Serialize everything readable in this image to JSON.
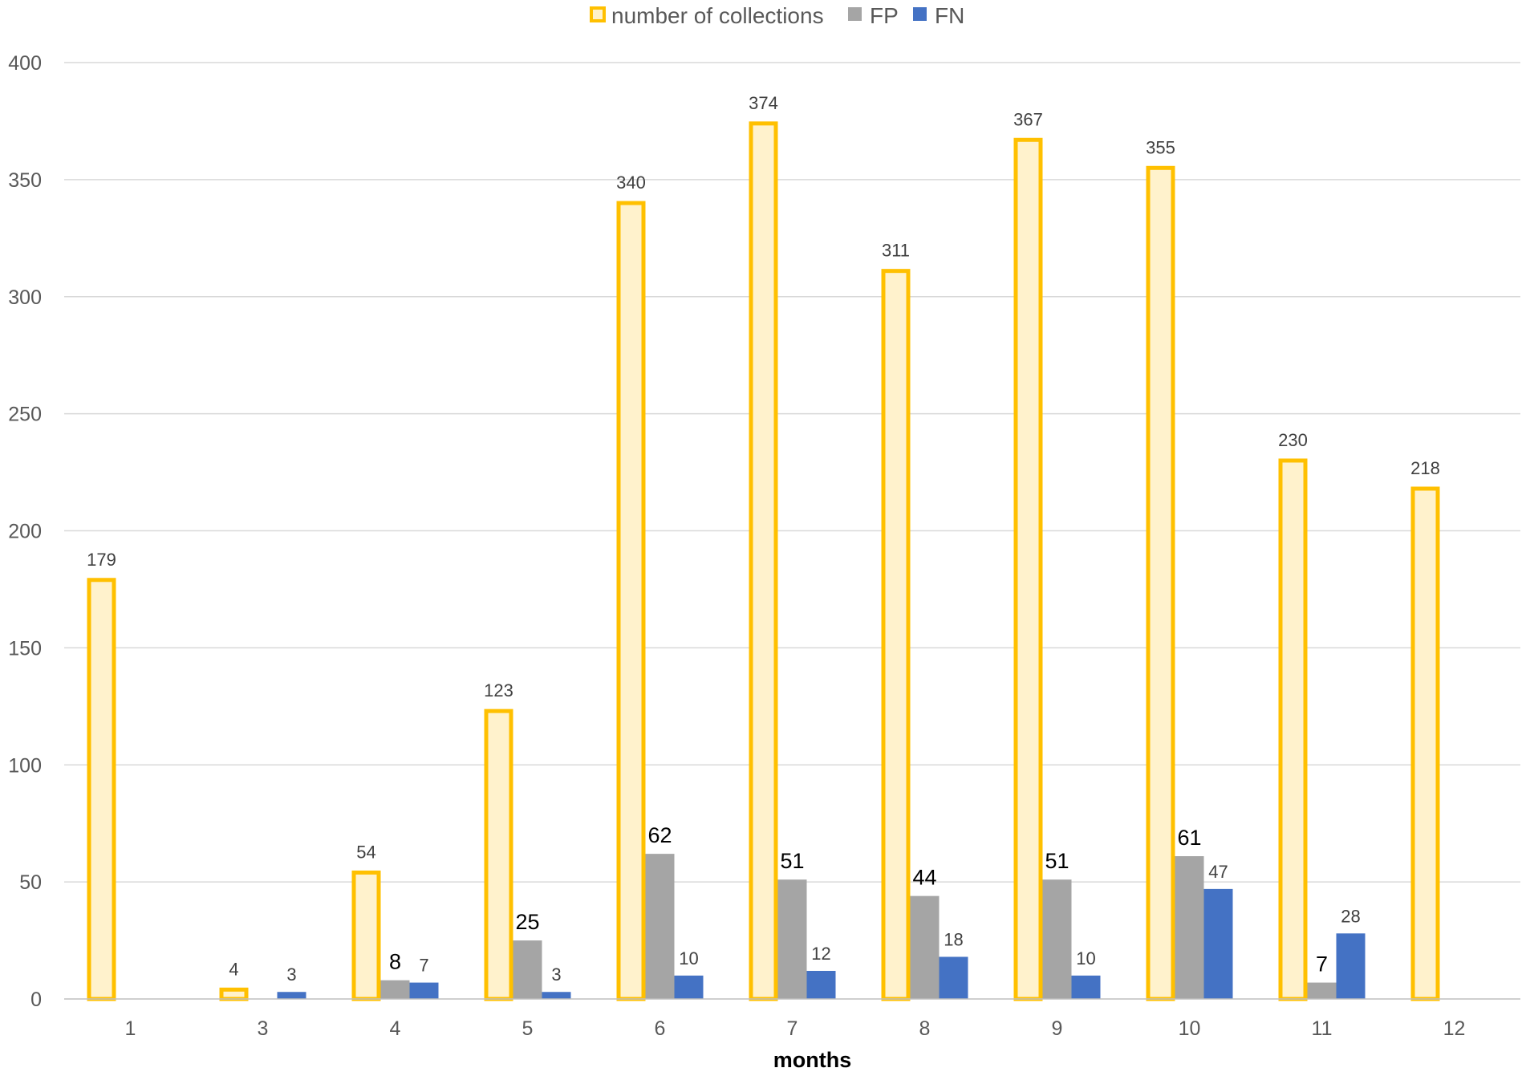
{
  "chart_data": {
    "type": "bar",
    "categories": [
      "1",
      "3",
      "4",
      "5",
      "6",
      "7",
      "8",
      "9",
      "10",
      "11",
      "12"
    ],
    "series": [
      {
        "name": "number of collections",
        "values": [
          179,
          4,
          54,
          123,
          340,
          374,
          311,
          367,
          355,
          230,
          218
        ],
        "labels": [
          "179",
          "4",
          "54",
          "123",
          "340",
          "374",
          "311",
          "367",
          "355",
          "230",
          "218"
        ],
        "fill": "#FFF2CC",
        "stroke": "#FFC000"
      },
      {
        "name": "FP",
        "values": [
          null,
          null,
          8,
          25,
          62,
          51,
          44,
          51,
          61,
          7,
          null
        ],
        "labels": [
          null,
          null,
          "8",
          "25",
          "62",
          "51",
          "44",
          "51",
          "61",
          "7",
          null
        ],
        "fill": "#A5A5A5",
        "stroke": "#A5A5A5"
      },
      {
        "name": "FN",
        "values": [
          null,
          3,
          7,
          3,
          10,
          12,
          18,
          10,
          47,
          28,
          null
        ],
        "labels": [
          null,
          "3",
          "7",
          "3",
          "10",
          "12",
          "18",
          "10",
          "47",
          "28",
          null
        ],
        "fill": "#4472C4",
        "stroke": "#4472C4"
      }
    ],
    "title": "",
    "xlabel": "months",
    "ylabel": "",
    "ylim": [
      0,
      400
    ],
    "yticks": [
      0,
      50,
      100,
      150,
      200,
      250,
      300,
      350,
      400
    ],
    "grid": true,
    "legend_position": "top-center",
    "colors": {
      "grid": "#D9D9D9",
      "axis": "#BFBFBF",
      "tick_text": "#595959"
    }
  }
}
